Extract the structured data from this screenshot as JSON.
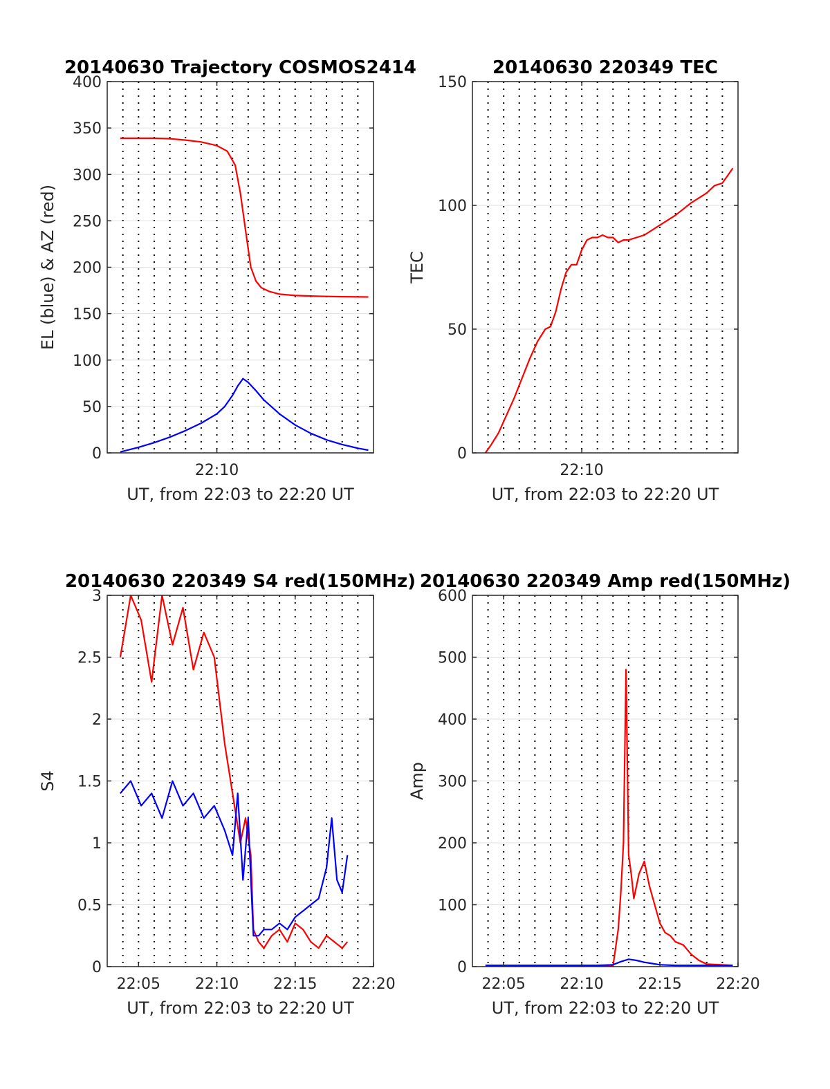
{
  "chart_data": [
    {
      "type": "line",
      "title": "20140630 Trajectory COSMOS2414",
      "xlabel": "UT, from 22:03 to 22:20 UT",
      "ylabel": "EL (blue) & AZ (red)",
      "xlim": [
        "22:03",
        "22:20"
      ],
      "ylim": [
        0,
        400
      ],
      "yticks": [
        0,
        50,
        100,
        150,
        200,
        250,
        300,
        350,
        400
      ],
      "xticks": [
        {
          "value": "22:10",
          "label": "22:10"
        }
      ],
      "grid": "x dotted at each minute, y solid",
      "series": [
        {
          "color": "#ff0000",
          "x": [
            "22:03:50",
            "22:05:00",
            "22:06:00",
            "22:07:00",
            "22:08:00",
            "22:09:00",
            "22:10:00",
            "22:10:40",
            "22:11:10",
            "22:11:30",
            "22:11:50",
            "22:12:10",
            "22:12:30",
            "22:12:50",
            "22:13:20",
            "22:14:00",
            "22:15:00",
            "22:16:30",
            "22:18:00",
            "22:19:40"
          ],
          "values": [
            339,
            339,
            339,
            338.5,
            337,
            335,
            331,
            325,
            310,
            280,
            240,
            200,
            185,
            178,
            174,
            171,
            169.5,
            168.7,
            168.3,
            168
          ]
        },
        {
          "color": "#0000ff",
          "x": [
            "22:03:50",
            "22:05:00",
            "22:06:00",
            "22:07:00",
            "22:08:00",
            "22:09:00",
            "22:10:00",
            "22:10:30",
            "22:11:00",
            "22:11:20",
            "22:11:40",
            "22:12:00",
            "22:12:30",
            "22:13:00",
            "22:14:00",
            "22:15:00",
            "22:16:00",
            "22:17:00",
            "22:18:00",
            "22:19:00",
            "22:19:40"
          ],
          "values": [
            1,
            6,
            11,
            17,
            24,
            32,
            42,
            50,
            62,
            72,
            80,
            76,
            67,
            57,
            42,
            30,
            21,
            14,
            9,
            5,
            3
          ]
        }
      ]
    },
    {
      "type": "line",
      "title": "20140630 220349 TEC",
      "xlabel": "UT, from 22:03 to 22:20 UT",
      "ylabel": "TEC",
      "xlim": [
        "22:03",
        "22:20"
      ],
      "ylim": [
        0,
        150
      ],
      "yticks": [
        0,
        50,
        100,
        150
      ],
      "xticks": [
        {
          "value": "22:10",
          "label": "22:10"
        }
      ],
      "grid": "x dotted at each minute, y solid",
      "series": [
        {
          "color": "#ff0000",
          "x": [
            "22:03:50",
            "22:04:10",
            "22:04:40",
            "22:05:10",
            "22:05:40",
            "22:06:10",
            "22:06:40",
            "22:07:10",
            "22:07:40",
            "22:08:00",
            "22:08:20",
            "22:08:40",
            "22:09:00",
            "22:09:20",
            "22:09:40",
            "22:10:00",
            "22:10:20",
            "22:10:40",
            "22:11:00",
            "22:11:20",
            "22:11:40",
            "22:12:00",
            "22:12:20",
            "22:12:40",
            "22:13:00",
            "22:13:30",
            "22:14:00",
            "22:15:00",
            "22:16:00",
            "22:17:00",
            "22:18:00",
            "22:18:30",
            "22:19:00",
            "22:19:40"
          ],
          "values": [
            0,
            3,
            8,
            15,
            22,
            30,
            38,
            45,
            50,
            51,
            57,
            66,
            73,
            76,
            76,
            82,
            86,
            87,
            87,
            88,
            87,
            87,
            85,
            86,
            86,
            87,
            88,
            92,
            96,
            101,
            105,
            108,
            109,
            115
          ]
        }
      ]
    },
    {
      "type": "line",
      "title": "20140630 220349 S4 red(150MHz)",
      "xlabel": "UT, from 22:03 to 22:20 UT",
      "ylabel": "S4",
      "xlim": [
        "22:03",
        "22:20"
      ],
      "ylim": [
        0,
        3
      ],
      "yticks": [
        0,
        0.5,
        1,
        1.5,
        2,
        2.5,
        3
      ],
      "xticks": [
        {
          "value": "22:05",
          "label": "22:05"
        },
        {
          "value": "22:10",
          "label": "22:10"
        },
        {
          "value": "22:15",
          "label": "22:15"
        },
        {
          "value": "22:20",
          "label": "22:20"
        }
      ],
      "grid": "x dotted at each minute, y solid",
      "series": [
        {
          "color": "#ff0000",
          "x": [
            "22:03:50",
            "22:04:30",
            "22:05:10",
            "22:05:50",
            "22:06:30",
            "22:07:10",
            "22:07:50",
            "22:08:30",
            "22:09:10",
            "22:09:50",
            "22:10:30",
            "22:11:00",
            "22:11:30",
            "22:11:50",
            "22:12:10",
            "22:12:20",
            "22:12:40",
            "22:13:00",
            "22:13:30",
            "22:14:00",
            "22:14:30",
            "22:15:00",
            "22:15:30",
            "22:16:00",
            "22:16:30",
            "22:17:00",
            "22:17:30",
            "22:18:00",
            "22:18:20"
          ],
          "values": [
            2.5,
            3.0,
            2.8,
            2.3,
            3.0,
            2.6,
            2.9,
            2.4,
            2.7,
            2.5,
            1.8,
            1.4,
            1.0,
            1.2,
            0.9,
            0.3,
            0.2,
            0.15,
            0.25,
            0.3,
            0.2,
            0.35,
            0.3,
            0.2,
            0.15,
            0.25,
            0.2,
            0.15,
            0.2
          ]
        },
        {
          "color": "#0000ff",
          "x": [
            "22:03:50",
            "22:04:30",
            "22:05:10",
            "22:05:50",
            "22:06:30",
            "22:07:10",
            "22:07:50",
            "22:08:30",
            "22:09:10",
            "22:09:50",
            "22:10:30",
            "22:11:00",
            "22:11:20",
            "22:11:40",
            "22:12:00",
            "22:12:20",
            "22:12:40",
            "22:13:00",
            "22:13:30",
            "22:14:00",
            "22:14:30",
            "22:15:00",
            "22:15:30",
            "22:16:00",
            "22:16:30",
            "22:17:00",
            "22:17:20",
            "22:17:40",
            "22:18:00",
            "22:18:20"
          ],
          "values": [
            1.4,
            1.5,
            1.3,
            1.4,
            1.2,
            1.5,
            1.3,
            1.4,
            1.2,
            1.3,
            1.1,
            0.9,
            1.4,
            0.7,
            1.2,
            0.25,
            0.25,
            0.3,
            0.3,
            0.35,
            0.3,
            0.4,
            0.45,
            0.5,
            0.55,
            0.8,
            1.2,
            0.7,
            0.6,
            0.9
          ]
        }
      ]
    },
    {
      "type": "line",
      "title": "20140630 220349 Amp red(150MHz)",
      "xlabel": "UT, from 22:03 to 22:20 UT",
      "ylabel": "Amp",
      "xlim": [
        "22:03",
        "22:20"
      ],
      "ylim": [
        0,
        600
      ],
      "yticks": [
        0,
        100,
        200,
        300,
        400,
        500,
        600
      ],
      "xticks": [
        {
          "value": "22:05",
          "label": "22:05"
        },
        {
          "value": "22:10",
          "label": "22:10"
        },
        {
          "value": "22:15",
          "label": "22:15"
        },
        {
          "value": "22:20",
          "label": "22:20"
        }
      ],
      "grid": "x dotted at each minute, y solid",
      "series": [
        {
          "color": "#ff0000",
          "x": [
            "22:03:50",
            "22:11:00",
            "22:12:00",
            "22:12:20",
            "22:12:30",
            "22:12:40",
            "22:12:50",
            "22:13:00",
            "22:13:10",
            "22:13:20",
            "22:13:40",
            "22:14:00",
            "22:14:20",
            "22:14:40",
            "22:15:00",
            "22:15:20",
            "22:15:40",
            "22:16:00",
            "22:16:30",
            "22:17:00",
            "22:17:30",
            "22:18:00",
            "22:19:40"
          ],
          "values": [
            0,
            0,
            1,
            60,
            120,
            200,
            480,
            180,
            150,
            110,
            150,
            170,
            130,
            100,
            70,
            55,
            50,
            40,
            35,
            20,
            10,
            4,
            2
          ]
        },
        {
          "color": "#0000ff",
          "x": [
            "22:03:50",
            "22:11:00",
            "22:12:00",
            "22:12:30",
            "22:13:00",
            "22:13:30",
            "22:14:00",
            "22:14:30",
            "22:15:00",
            "22:16:00",
            "22:17:00",
            "22:19:40"
          ],
          "values": [
            2,
            2,
            3,
            8,
            12,
            10,
            7,
            5,
            3,
            2,
            2,
            2
          ]
        }
      ]
    }
  ]
}
